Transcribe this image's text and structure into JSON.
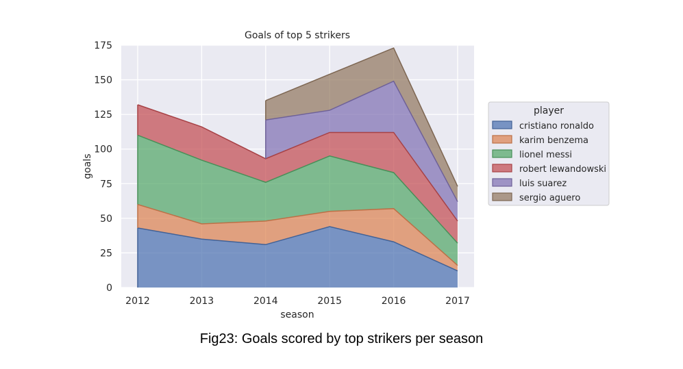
{
  "chart_data": {
    "type": "area",
    "stacked": true,
    "title": "Goals of top 5 strikers",
    "xlabel": "season",
    "ylabel": "goals",
    "x": [
      "2012",
      "2013",
      "2014",
      "2015",
      "2016",
      "2017"
    ],
    "ylim": [
      0,
      175
    ],
    "yticks": [
      0,
      25,
      50,
      75,
      100,
      125,
      150,
      175
    ],
    "grid": true,
    "legend": {
      "title": "player",
      "placement": "right"
    },
    "series": [
      {
        "name": "cristiano ronaldo",
        "color": "#4c72b0",
        "values": [
          43,
          35,
          31,
          44,
          33,
          12
        ]
      },
      {
        "name": "karim benzema",
        "color": "#dd8452",
        "values": [
          17,
          11,
          17,
          11,
          24,
          4
        ]
      },
      {
        "name": "lionel messi",
        "color": "#55a868",
        "values": [
          50,
          46,
          28,
          40,
          26,
          16
        ]
      },
      {
        "name": "robert lewandowski",
        "color": "#c44e52",
        "values": [
          22,
          24,
          17,
          17,
          29,
          16
        ]
      },
      {
        "name": "luis suarez",
        "color": "#8172b3",
        "values": [
          null,
          null,
          28,
          16,
          37,
          14
        ]
      },
      {
        "name": "sergio aguero",
        "color": "#937860",
        "values": [
          null,
          null,
          14,
          26,
          24,
          11
        ]
      }
    ]
  },
  "caption": "Fig23: Goals scored by top strikers per season"
}
